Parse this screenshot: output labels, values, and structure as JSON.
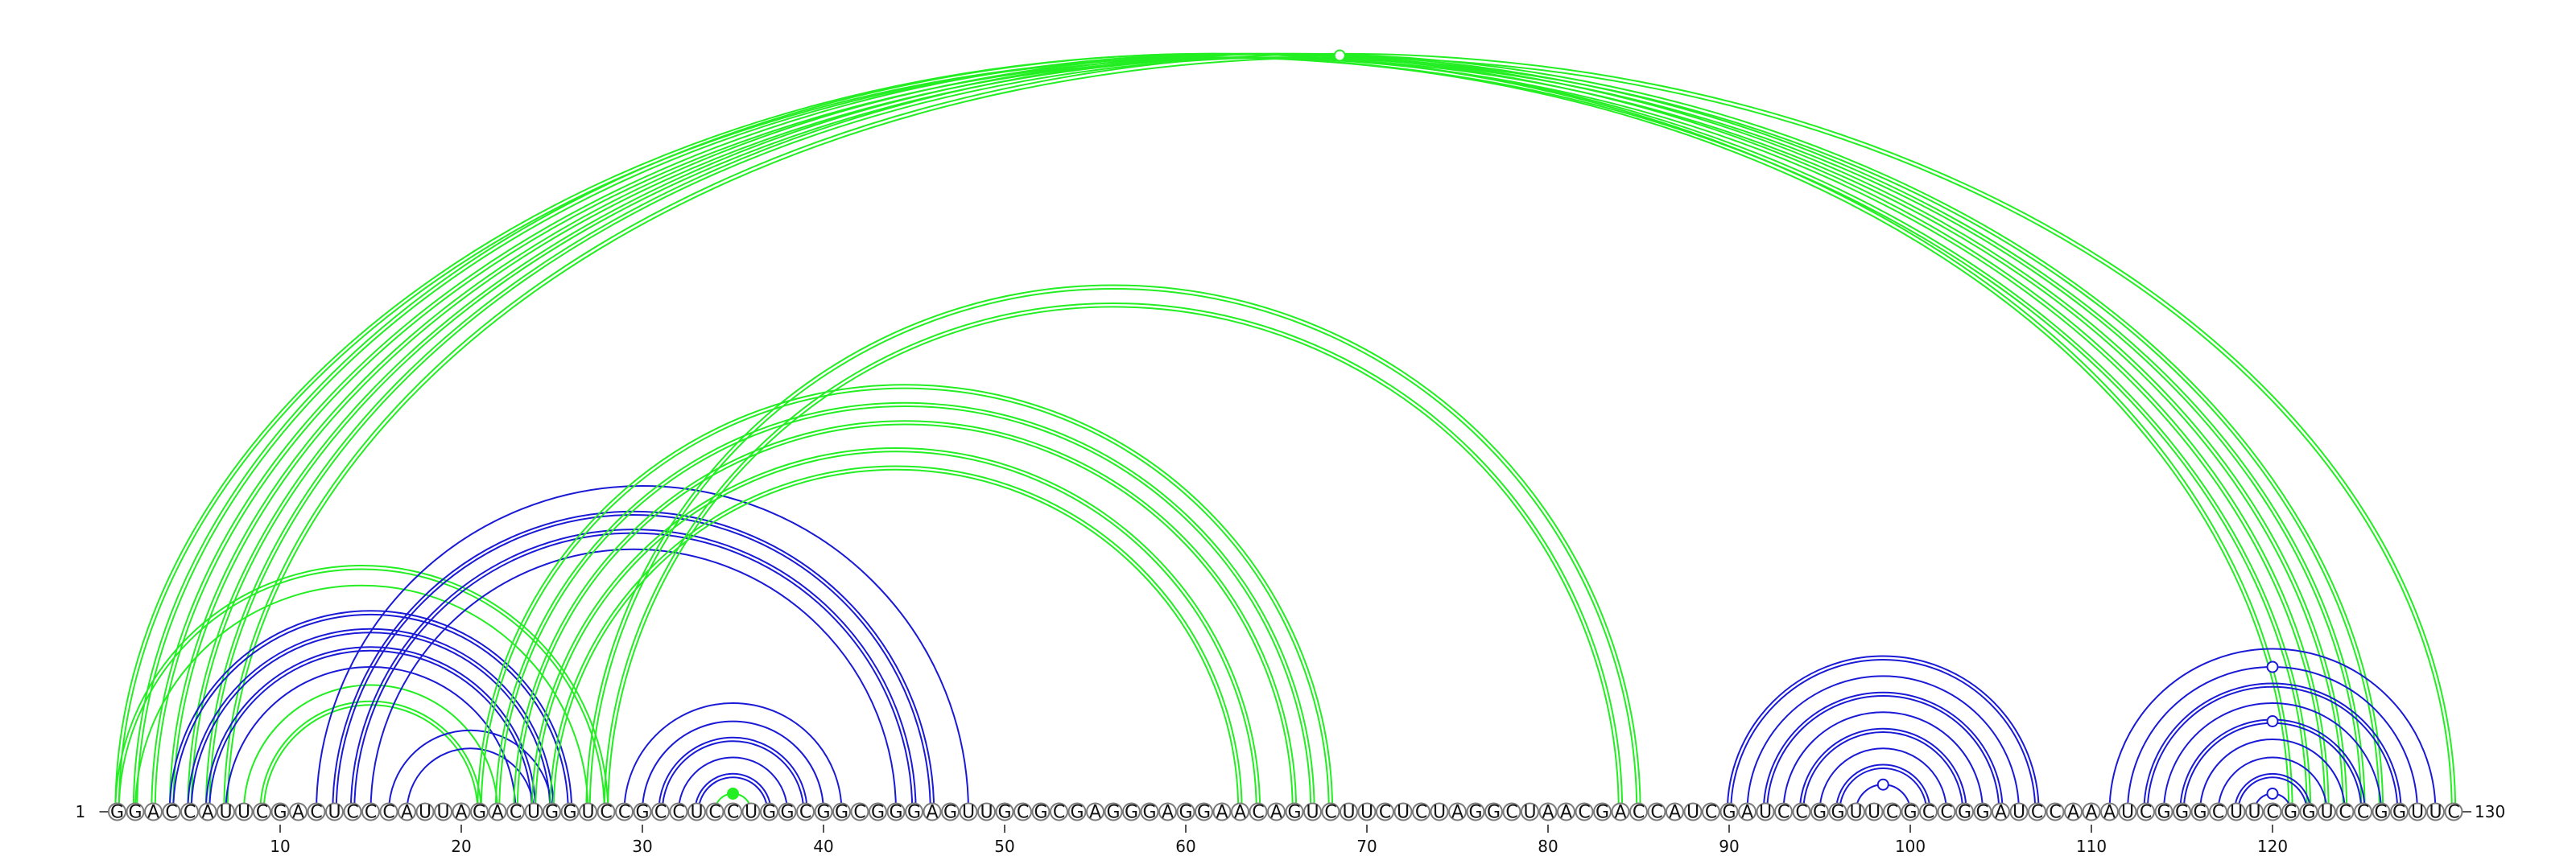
{
  "sequence": "GGACCAUUCGACUCCCAUUAGACUGGUCCGCCUCCUGGCGGCGGGAGUUGCGCGAGGGAGGAACAGUCUUCUCUAGGCUAACGACCAUCGAUCCGGUUCGCCGGAUCCAAAUCGGGCUUCGGUCCGGUUC",
  "start_label": "1",
  "end_label": "130",
  "ticks": [
    10,
    20,
    30,
    40,
    50,
    60,
    70,
    80,
    90,
    100,
    110,
    120
  ],
  "colors": {
    "green": "#22ee22",
    "blue": "#1a1ad6"
  },
  "arcs": [
    {
      "i": 1,
      "j": 122,
      "color": "green",
      "lines": 2
    },
    {
      "i": 2,
      "j": 121,
      "color": "green",
      "lines": 2
    },
    {
      "i": 3,
      "j": 123,
      "color": "green",
      "lines": 2
    },
    {
      "i": 4,
      "j": 124,
      "color": "green",
      "lines": 2
    },
    {
      "i": 5,
      "j": 125,
      "color": "green",
      "lines": 2
    },
    {
      "i": 6,
      "j": 126,
      "color": "green",
      "lines": 2
    },
    {
      "i": 7,
      "j": 130,
      "color": "green",
      "lines": 2,
      "marker": "open"
    },
    {
      "i": 1,
      "j": 28,
      "color": "green",
      "lines": 2
    },
    {
      "i": 2,
      "j": 27,
      "color": "green",
      "lines": 1
    },
    {
      "i": 4,
      "j": 26,
      "color": "blue",
      "lines": 2
    },
    {
      "i": 5,
      "j": 25,
      "color": "blue",
      "lines": 2
    },
    {
      "i": 6,
      "j": 24,
      "color": "blue",
      "lines": 2
    },
    {
      "i": 7,
      "j": 23,
      "color": "blue",
      "lines": 1
    },
    {
      "i": 8,
      "j": 22,
      "color": "green",
      "lines": 1
    },
    {
      "i": 9,
      "j": 21,
      "color": "green",
      "lines": 2
    },
    {
      "i": 12,
      "j": 48,
      "color": "blue",
      "lines": 1
    },
    {
      "i": 13,
      "j": 46,
      "color": "blue",
      "lines": 2
    },
    {
      "i": 14,
      "j": 45,
      "color": "blue",
      "lines": 2
    },
    {
      "i": 15,
      "j": 44,
      "color": "blue",
      "lines": 1
    },
    {
      "i": 16,
      "j": 25,
      "color": "blue",
      "lines": 1
    },
    {
      "i": 17,
      "j": 24,
      "color": "blue",
      "lines": 1
    },
    {
      "i": 21,
      "j": 68,
      "color": "green",
      "lines": 2
    },
    {
      "i": 22,
      "j": 67,
      "color": "green",
      "lines": 2
    },
    {
      "i": 23,
      "j": 66,
      "color": "green",
      "lines": 2
    },
    {
      "i": 24,
      "j": 64,
      "color": "green",
      "lines": 2
    },
    {
      "i": 25,
      "j": 63,
      "color": "green",
      "lines": 2
    },
    {
      "i": 27,
      "j": 85,
      "color": "green",
      "lines": 2
    },
    {
      "i": 28,
      "j": 84,
      "color": "green",
      "lines": 2
    },
    {
      "i": 29,
      "j": 41,
      "color": "blue",
      "lines": 1
    },
    {
      "i": 30,
      "j": 40,
      "color": "blue",
      "lines": 1
    },
    {
      "i": 31,
      "j": 39,
      "color": "blue",
      "lines": 2
    },
    {
      "i": 32,
      "j": 38,
      "color": "blue",
      "lines": 1
    },
    {
      "i": 33,
      "j": 37,
      "color": "blue",
      "lines": 2
    },
    {
      "i": 34,
      "j": 36,
      "color": "green",
      "lines": 1,
      "marker": "filled"
    },
    {
      "i": 90,
      "j": 107,
      "color": "blue",
      "lines": 2
    },
    {
      "i": 91,
      "j": 106,
      "color": "blue",
      "lines": 1
    },
    {
      "i": 92,
      "j": 105,
      "color": "blue",
      "lines": 2
    },
    {
      "i": 93,
      "j": 104,
      "color": "blue",
      "lines": 1
    },
    {
      "i": 94,
      "j": 103,
      "color": "blue",
      "lines": 2
    },
    {
      "i": 95,
      "j": 102,
      "color": "blue",
      "lines": 1
    },
    {
      "i": 96,
      "j": 101,
      "color": "blue",
      "lines": 2
    },
    {
      "i": 97,
      "j": 100,
      "color": "blue",
      "lines": 1,
      "marker": "open"
    },
    {
      "i": 111,
      "j": 129,
      "color": "blue",
      "lines": 1
    },
    {
      "i": 112,
      "j": 128,
      "color": "blue",
      "lines": 1,
      "marker": "open"
    },
    {
      "i": 113,
      "j": 127,
      "color": "blue",
      "lines": 2
    },
    {
      "i": 114,
      "j": 126,
      "color": "blue",
      "lines": 1
    },
    {
      "i": 115,
      "j": 125,
      "color": "blue",
      "lines": 2,
      "marker": "open"
    },
    {
      "i": 116,
      "j": 124,
      "color": "blue",
      "lines": 1
    },
    {
      "i": 117,
      "j": 123,
      "color": "blue",
      "lines": 1
    },
    {
      "i": 118,
      "j": 122,
      "color": "blue",
      "lines": 2
    },
    {
      "i": 119,
      "j": 121,
      "color": "blue",
      "lines": 1,
      "marker": "open"
    }
  ]
}
